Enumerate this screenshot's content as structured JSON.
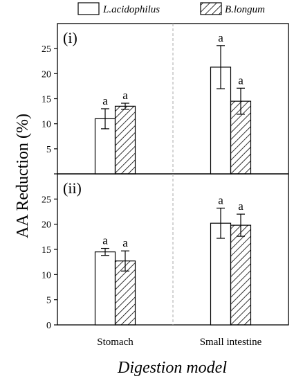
{
  "chart_data": {
    "type": "bar",
    "xlabel": "Digestion model",
    "ylabel": "AA Reduction (%)",
    "categories": [
      "Stomach",
      "Small intestine"
    ],
    "legend": {
      "placement": "top",
      "entries": [
        {
          "name": "L.acidophilus",
          "pattern": "solid-white"
        },
        {
          "name": "B.longum",
          "pattern": "diagonal-hatch"
        }
      ]
    },
    "ylim": [
      0,
      30
    ],
    "yticks": [
      0,
      5,
      10,
      15,
      20,
      25
    ],
    "panels": [
      {
        "label": "(i)",
        "series": [
          {
            "name": "L.acidophilus",
            "values": [
              11.0,
              21.3
            ],
            "errors": [
              2.0,
              4.3
            ],
            "sig": [
              "a",
              "a"
            ]
          },
          {
            "name": "B.longum",
            "values": [
              13.5,
              14.5
            ],
            "errors": [
              0.6,
              2.6
            ],
            "sig": [
              "a",
              "a"
            ]
          }
        ]
      },
      {
        "label": "(ii)",
        "series": [
          {
            "name": "L.acidophilus",
            "values": [
              14.5,
              20.2
            ],
            "errors": [
              0.7,
              3.0
            ],
            "sig": [
              "a",
              "a"
            ]
          },
          {
            "name": "B.longum",
            "values": [
              12.7,
              19.8
            ],
            "errors": [
              2.0,
              2.2
            ],
            "sig": [
              "a",
              "a"
            ]
          }
        ]
      }
    ],
    "divider": "dashed vertical line between categories"
  }
}
